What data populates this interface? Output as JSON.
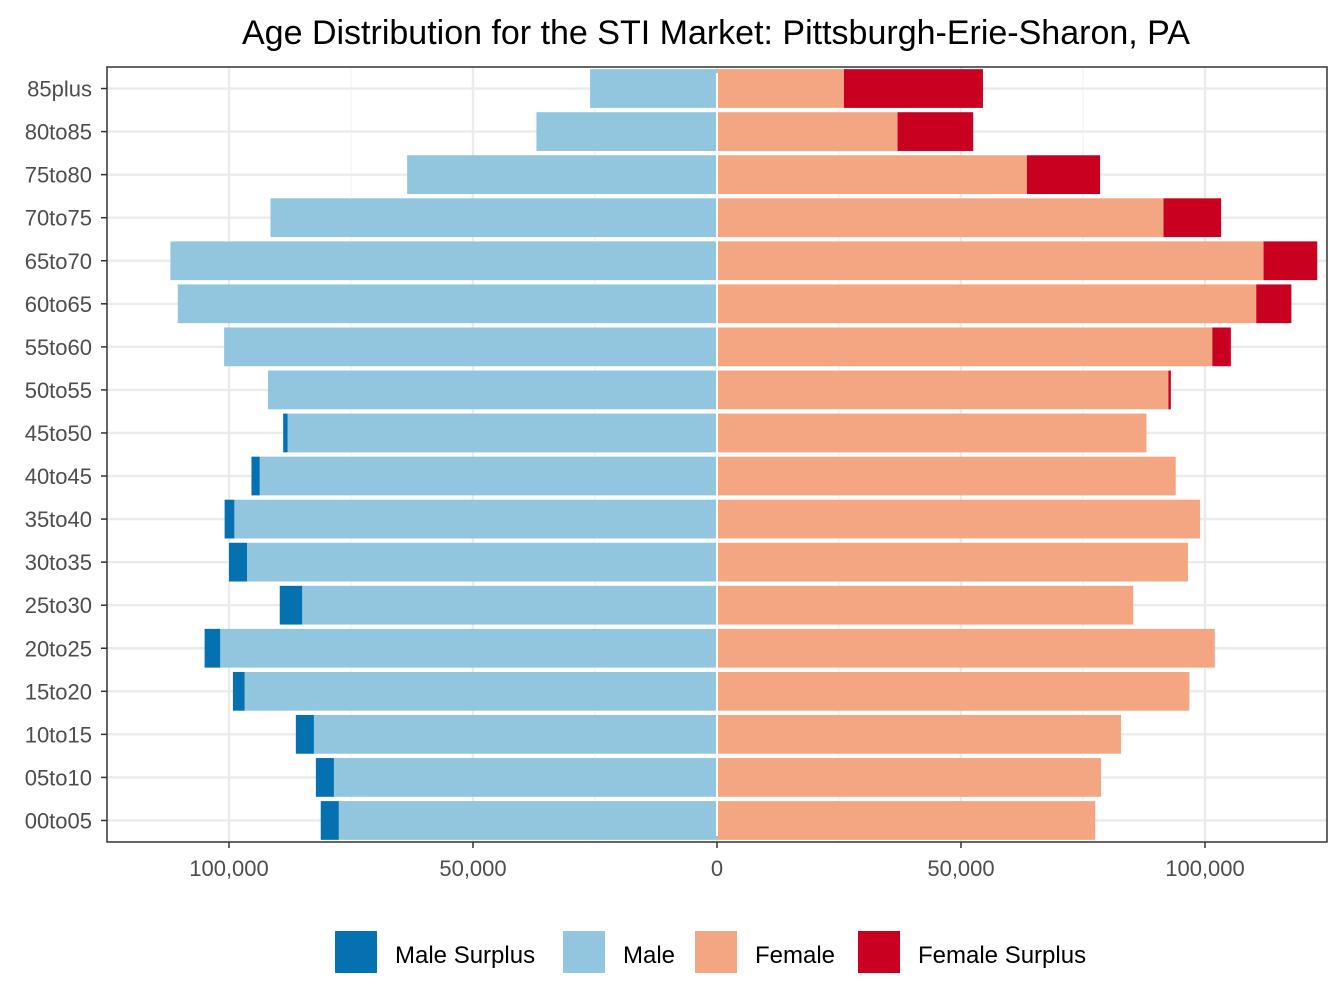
{
  "chart_data": {
    "type": "bar",
    "orientation": "horizontal",
    "layout": "population-pyramid",
    "title": "Age Distribution for the STI Market: Pittsburgh-Erie-Sharon, PA",
    "xlabel": "",
    "ylabel": "",
    "xlim": [
      -125000,
      125000
    ],
    "x_ticks": [
      -100000,
      -50000,
      0,
      50000,
      100000
    ],
    "x_tick_labels": [
      "100,000",
      "50,000",
      "0",
      "50,000",
      "100,000"
    ],
    "grid": true,
    "legend_position": "bottom",
    "categories": [
      "85plus",
      "80to85",
      "75to80",
      "70to75",
      "65to70",
      "60to65",
      "55to60",
      "50to55",
      "45to50",
      "40to45",
      "35to40",
      "30to35",
      "25to30",
      "20to25",
      "15to20",
      "10to15",
      "05to10",
      "00to05"
    ],
    "series": [
      {
        "name": "Male Surplus",
        "color": "#0571b0",
        "side": "left",
        "values": [
          0,
          0,
          0,
          0,
          0,
          0,
          0,
          0,
          900,
          1700,
          2000,
          3700,
          4600,
          3200,
          2400,
          3700,
          3700,
          3700
        ]
      },
      {
        "name": "Male",
        "color": "#92c5de",
        "side": "left",
        "values": [
          26000,
          37000,
          63500,
          91500,
          112000,
          110500,
          101000,
          92000,
          88000,
          93700,
          98900,
          96300,
          85000,
          101800,
          96800,
          82600,
          78500,
          77500
        ]
      },
      {
        "name": "Female",
        "color": "#f4a582",
        "side": "right",
        "values": [
          26000,
          37000,
          63500,
          91500,
          112000,
          110500,
          101500,
          92500,
          88000,
          94000,
          99000,
          96500,
          85300,
          102000,
          96800,
          82800,
          78700,
          77500
        ]
      },
      {
        "name": "Female Surplus",
        "color": "#ca0020",
        "side": "right",
        "values": [
          28500,
          15500,
          15000,
          11800,
          11000,
          7200,
          3800,
          500,
          0,
          0,
          0,
          0,
          0,
          0,
          0,
          0,
          0,
          0
        ]
      }
    ],
    "legend": [
      "Male Surplus",
      "Male",
      "Female",
      "Female Surplus"
    ]
  },
  "colors": {
    "background": "#ffffff",
    "panel_border": "#333333",
    "grid_major": "#ebebeb",
    "grid_minor": "#f3f3f3",
    "tick_text": "#4d4d4d"
  }
}
